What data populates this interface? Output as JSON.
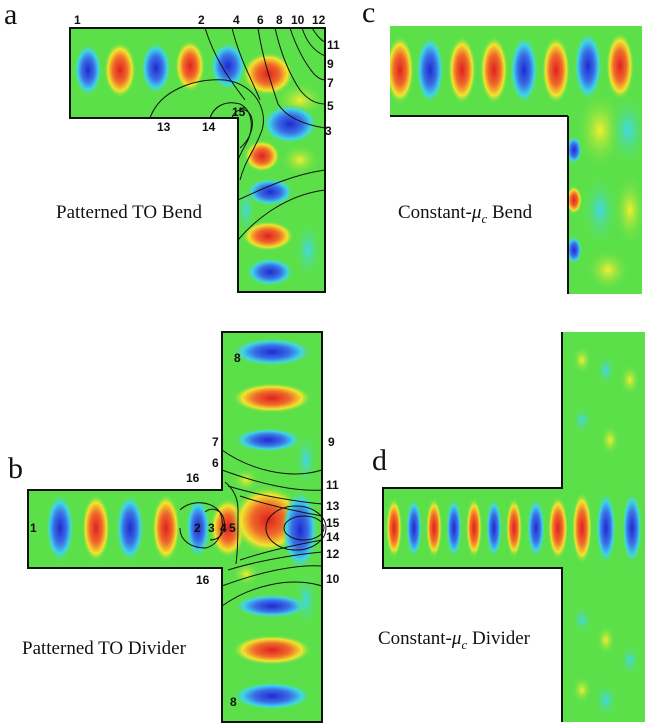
{
  "panels": {
    "a": {
      "letter": "a",
      "caption": "Patterned TO Bend",
      "contour_labels": [
        "1",
        "2",
        "4",
        "6",
        "8",
        "10",
        "12",
        "11",
        "9",
        "7",
        "5",
        "3",
        "13",
        "14",
        "15"
      ]
    },
    "c": {
      "letter": "c",
      "caption_prefix": "Constant-",
      "caption_mu": "μ",
      "caption_sub": "c",
      "caption_suffix": " Bend"
    },
    "b": {
      "letter": "b",
      "caption": "Patterned TO Divider",
      "contour_labels": [
        "8",
        "9",
        "7",
        "6",
        "16",
        "11",
        "13",
        "15",
        "14",
        "12",
        "10",
        "1",
        "2",
        "3",
        "4",
        "5",
        "16",
        "8"
      ]
    },
    "d": {
      "letter": "d",
      "caption_prefix": "Constant-",
      "caption_mu": "μ",
      "caption_sub": "c",
      "caption_suffix": " Divider"
    }
  },
  "colors": {
    "red": "#e8312a",
    "blue": "#2a3ad8",
    "cyan": "#3fd6e6",
    "green": "#5ce04a",
    "yellow": "#f2ea2e",
    "outline": "#111111"
  }
}
